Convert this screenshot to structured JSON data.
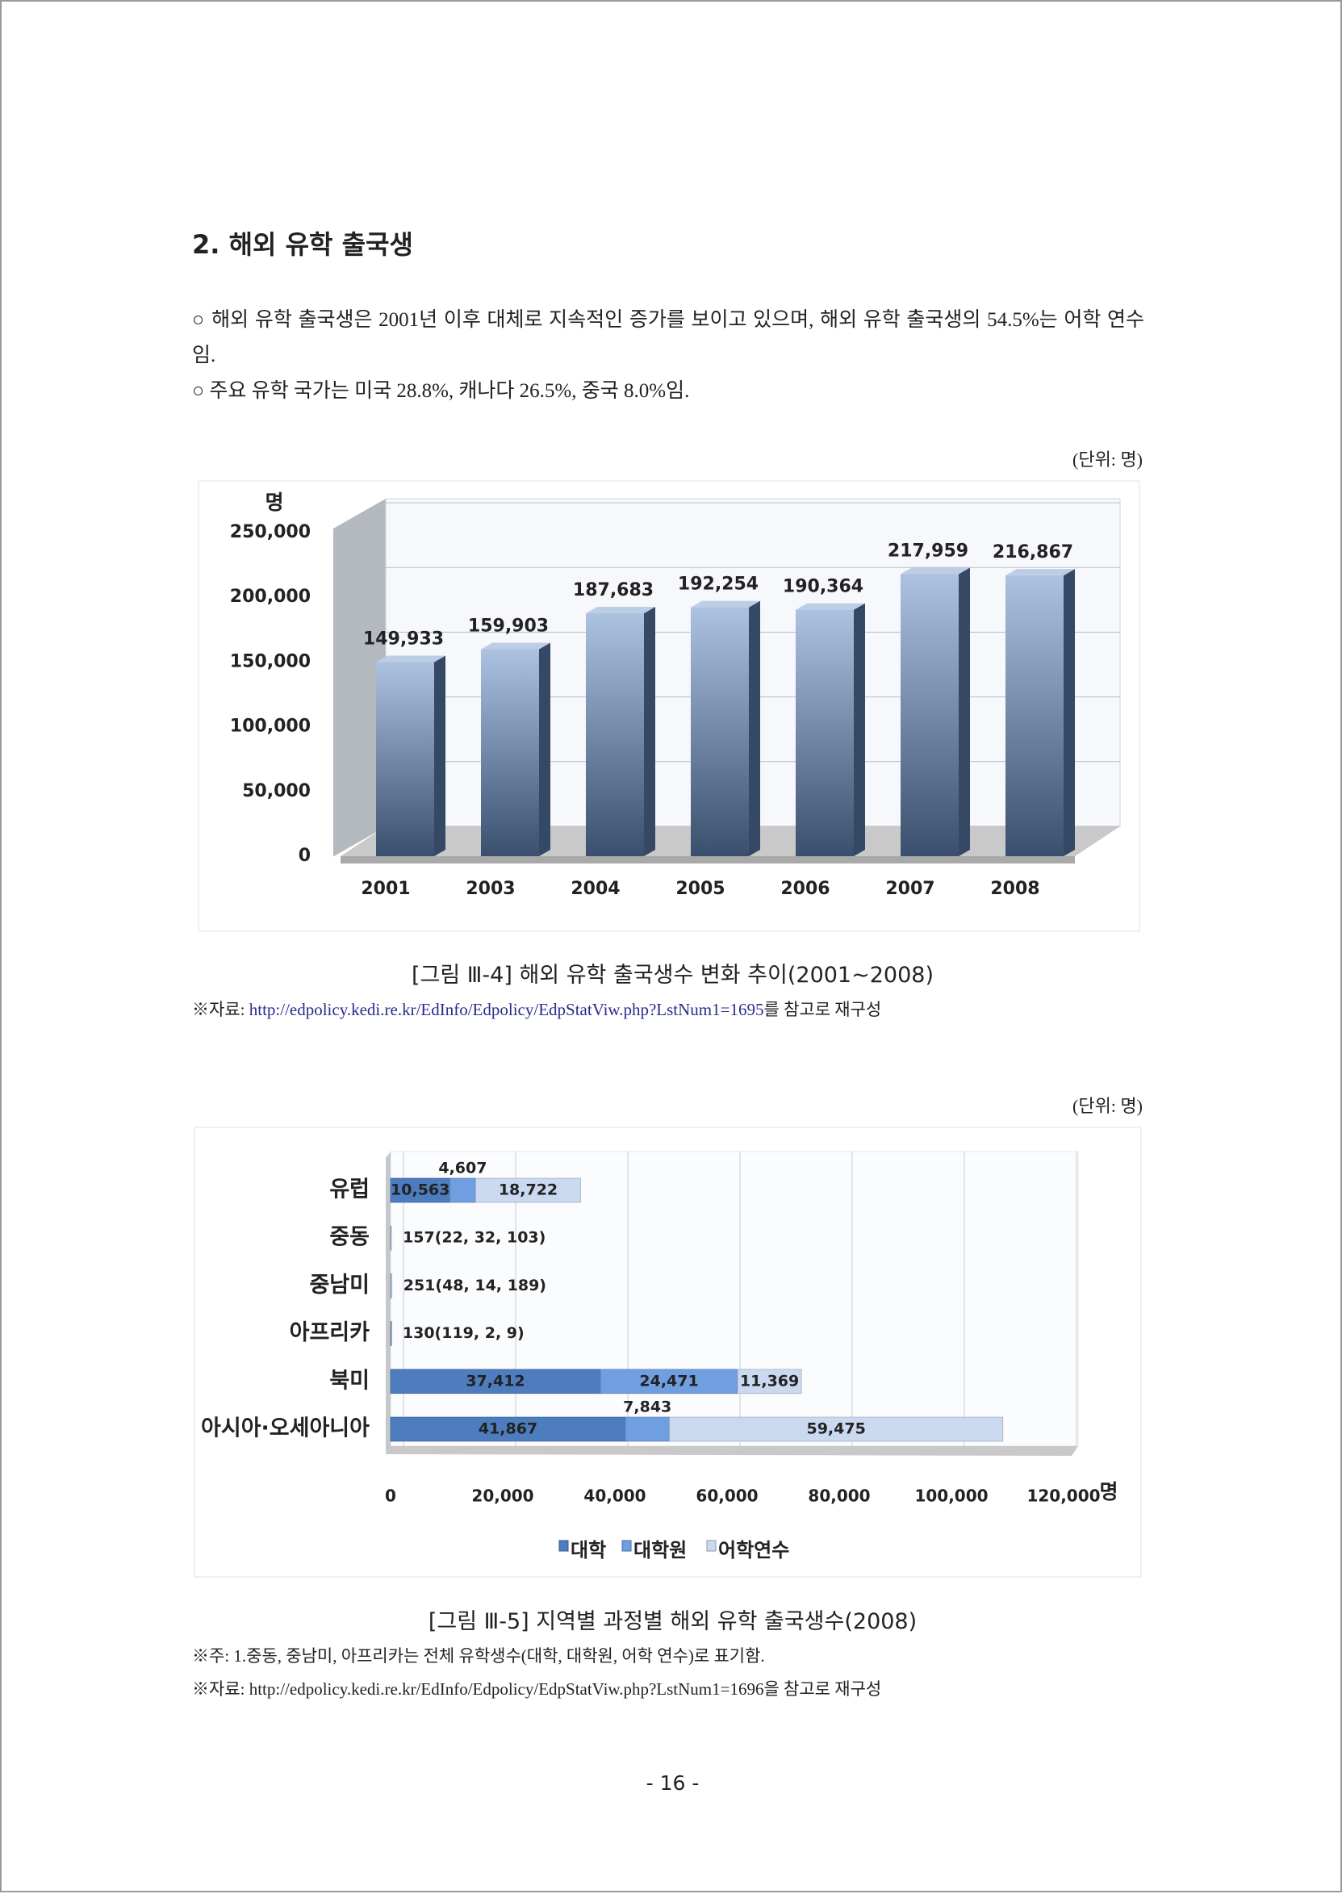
{
  "heading": "2. 해외 유학 출국생",
  "paragraphs": [
    "○ 해외 유학 출국생은 2001년 이후 대체로 지속적인 증가를 보이고 있으며, 해외 유학 출국생의 54.5%는 어학 연수임.",
    "○ 주요 유학 국가는 미국 28.8%, 캐나다 26.5%, 중국 8.0%임."
  ],
  "figures": [
    {
      "unit": "(단위: 명)",
      "caption": "[그림 Ⅲ-4] 해외 유학 출국생수 변화 추이(2001~2008)",
      "source": {
        "prefix": "※자료: ",
        "link": "http://edpolicy.kedi.re.kr/EdInfo/Edpolicy/EdpStatViw.php?LstNum1=1695",
        "suffix": "를 참고로 재구성"
      }
    },
    {
      "unit": "(단위: 명)",
      "caption": "[그림 Ⅲ-5] 지역별 과정별 해외 유학 출국생수(2008)",
      "note": "※주: 1.중동, 중남미, 아프리카는 전체 유학생수(대학, 대학원, 어학 연수)로 표기함.",
      "source": "※자료: http://edpolicy.kedi.re.kr/EdInfo/Edpolicy/EdpStatViw.php?LstNum1=1696을 참고로 재구성"
    }
  ],
  "page_number": "- 16 -",
  "chart_data": [
    {
      "type": "bar",
      "y_label": "명",
      "categories": [
        "2001",
        "2003",
        "2004",
        "2005",
        "2006",
        "2007",
        "2008"
      ],
      "values": [
        149933,
        159903,
        187683,
        192254,
        190364,
        217959,
        216867
      ],
      "value_labels": [
        "149,933",
        "159,903",
        "187,683",
        "192,254",
        "190,364",
        "217,959",
        "216,867"
      ],
      "color": "#6a8fc8",
      "ylim": [
        0,
        250000
      ],
      "yticks": [
        0,
        {
          "value": 50000,
          "label": "50,000"
        },
        {
          "value": 100000,
          "label": "100,000"
        },
        {
          "value": 150000,
          "label": "150,000"
        },
        {
          "value": 200000,
          "label": "200,000"
        },
        {
          "value": 250000,
          "label": "250,000"
        }
      ],
      "grid": true
    },
    {
      "type": "barh",
      "stacked": true,
      "categories": [
        "유럽",
        "중동",
        "중남미",
        "아프리카",
        "북미",
        "아시아·오세아니아"
      ],
      "series": [
        {
          "name": "대학",
          "color": "#4d7cbf",
          "values": [
            10563,
            22,
            48,
            119,
            37412,
            41867
          ],
          "value_labels": [
            "10,563",
            null,
            null,
            null,
            "37,412",
            "41,867"
          ]
        },
        {
          "name": "대학원",
          "color": "#6f9fe0",
          "values": [
            4607,
            32,
            14,
            2,
            24471,
            7843
          ],
          "value_labels": [
            "4,607",
            null,
            null,
            null,
            "24,471",
            "7,843"
          ]
        },
        {
          "name": "어학연수",
          "color": "#cad8f0",
          "values": [
            18722,
            103,
            189,
            9,
            11369,
            59475
          ],
          "value_labels": [
            "18,722",
            null,
            null,
            null,
            "11,369",
            "59,475"
          ]
        }
      ],
      "annotations": [
        {
          "category": "중동",
          "text": "157(22, 32, 103)"
        },
        {
          "category": "중남미",
          "text": "251(48, 14, 189)"
        },
        {
          "category": "아프리카",
          "text": "130(119, 2, 9)"
        }
      ],
      "x_label": "명",
      "xlim": [
        0,
        120000
      ],
      "xticks": [
        0,
        {
          "value": 20000,
          "label": "20,000"
        },
        {
          "value": 40000,
          "label": "40,000"
        },
        {
          "value": 60000,
          "label": "60,000"
        },
        {
          "value": 80000,
          "label": "80,000"
        },
        {
          "value": 100000,
          "label": "100,000"
        },
        {
          "value": 120000,
          "label": "120,000"
        }
      ],
      "grid": true,
      "legend": "bottom"
    }
  ]
}
